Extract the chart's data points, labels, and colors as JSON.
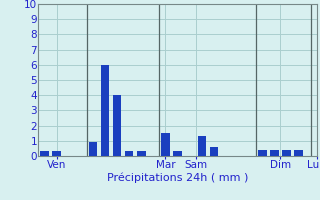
{
  "bar_values": [
    0.3,
    0.3,
    0.9,
    6.0,
    4.0,
    0.3,
    0.3,
    1.5,
    0.3,
    1.3,
    0.6,
    0.4,
    0.4,
    0.4,
    0.4
  ],
  "bar_positions": [
    0,
    1,
    4,
    5,
    6,
    7,
    8,
    10,
    11,
    13,
    14,
    18,
    19,
    20,
    21
  ],
  "total_bars": 23,
  "xlabel": "Précipitations 24h ( mm )",
  "ylim": [
    0,
    10
  ],
  "yticks": [
    0,
    1,
    2,
    3,
    4,
    5,
    6,
    7,
    8,
    9,
    10
  ],
  "day_labels": [
    "Ven",
    "Mar",
    "Sam",
    "Dim",
    "Lun"
  ],
  "day_tick_positions": [
    1.0,
    10.0,
    12.5,
    19.5,
    22.5
  ],
  "vlines": [
    3.5,
    9.5,
    17.5,
    22.0
  ],
  "bar_color": "#1a3fbf",
  "grid_color": "#aacece",
  "bg_color": "#d8f0f0",
  "label_color": "#2222cc",
  "xlabel_fontsize": 8,
  "tick_fontsize": 7.5
}
